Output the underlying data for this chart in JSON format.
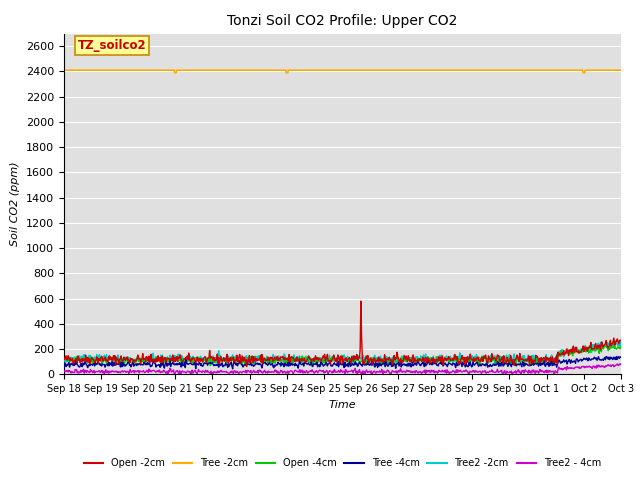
{
  "title": "Tonzi Soil CO2 Profile: Upper CO2",
  "ylabel": "Soil CO2 (ppm)",
  "xlabel": "Time",
  "ylim": [
    0,
    2700
  ],
  "yticks": [
    0,
    200,
    400,
    600,
    800,
    1000,
    1200,
    1400,
    1600,
    1800,
    2000,
    2200,
    2400,
    2600
  ],
  "bg_color": "#e0e0e0",
  "annotation_text": "TZ_soilco2",
  "annotation_bg": "#ffff99",
  "annotation_border": "#cc8800",
  "series_colors": {
    "Open -2cm": "#cc0000",
    "Tree -2cm": "#ffaa00",
    "Open -4cm": "#00cc00",
    "Tree -4cm": "#000099",
    "Tree2 -2cm": "#00cccc",
    "Tree2 - 4cm": "#cc00cc"
  },
  "xtick_labels": [
    "Sep 18",
    "Sep 19",
    "Sep 20",
    "Sep 21",
    "Sep 22",
    "Sep 23",
    "Sep 24",
    "Sep 25",
    "Sep 26",
    "Sep 27",
    "Sep 28",
    "Sep 29",
    "Sep 30",
    "Oct 1",
    "Oct 2",
    "Oct 3"
  ],
  "n_points": 800,
  "random_seed": 42
}
